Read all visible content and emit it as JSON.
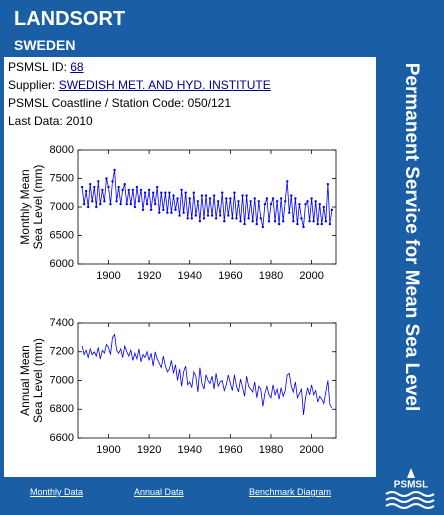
{
  "header": {
    "title": "LANDSORT",
    "subtitle": "SWEDEN"
  },
  "side_banner": "Permanent Service for Mean Sea Level",
  "info": [
    {
      "label": "PSMSL ID:",
      "link": "68"
    },
    {
      "label": "Supplier:",
      "link": "SWEDISH MET. AND HYD. INSTITUTE"
    },
    {
      "text": "PSMSL Coastline / Station Code: 050/121"
    },
    {
      "text": "Last Data: 2010"
    }
  ],
  "chart_data": [
    {
      "type": "line",
      "markers": true,
      "color": "#0000ff",
      "ylabel": [
        "Monthly Mean",
        "Sea Level (mm)"
      ],
      "xlim": [
        1885,
        2012
      ],
      "xticks": [
        1900,
        1920,
        1940,
        1960,
        1980,
        2000
      ],
      "ylim": [
        6000,
        8000
      ],
      "yticks": [
        6000,
        6500,
        7000,
        7500,
        8000
      ],
      "x": [
        1887,
        1888,
        1889,
        1890,
        1891,
        1892,
        1893,
        1894,
        1895,
        1896,
        1897,
        1898,
        1899,
        1900,
        1901,
        1902,
        1903,
        1904,
        1905,
        1906,
        1907,
        1908,
        1909,
        1910,
        1911,
        1912,
        1913,
        1914,
        1915,
        1916,
        1917,
        1918,
        1919,
        1920,
        1921,
        1922,
        1923,
        1924,
        1925,
        1926,
        1927,
        1928,
        1929,
        1930,
        1931,
        1932,
        1933,
        1934,
        1935,
        1936,
        1937,
        1938,
        1939,
        1940,
        1941,
        1942,
        1943,
        1944,
        1945,
        1946,
        1947,
        1948,
        1949,
        1950,
        1951,
        1952,
        1953,
        1954,
        1955,
        1956,
        1957,
        1958,
        1959,
        1960,
        1961,
        1962,
        1963,
        1964,
        1965,
        1966,
        1967,
        1968,
        1969,
        1970,
        1971,
        1972,
        1973,
        1974,
        1975,
        1976,
        1977,
        1978,
        1979,
        1980,
        1981,
        1982,
        1983,
        1984,
        1985,
        1986,
        1987,
        1988,
        1989,
        1990,
        1991,
        1992,
        1993,
        1994,
        1995,
        1996,
        1997,
        1998,
        1999,
        2000,
        2001,
        2002,
        2003,
        2004,
        2005,
        2006,
        2007,
        2008,
        2009,
        2010
      ],
      "values": [
        7350,
        7050,
        7280,
        7000,
        7400,
        7100,
        7350,
        7000,
        7450,
        7050,
        7300,
        7100,
        7500,
        7350,
        7050,
        7450,
        7650,
        7100,
        7350,
        7050,
        7300,
        7400,
        7050,
        7300,
        7050,
        7300,
        7000,
        7350,
        7100,
        7300,
        6950,
        7250,
        7050,
        7300,
        6950,
        7250,
        7050,
        7350,
        6900,
        7250,
        6950,
        7250,
        6900,
        7250,
        6900,
        7200,
        6950,
        7150,
        6850,
        7300,
        6900,
        7250,
        6800,
        7150,
        6800,
        7250,
        6850,
        7100,
        6750,
        7200,
        6800,
        7200,
        6850,
        7150,
        6850,
        7200,
        6800,
        7100,
        6850,
        7250,
        6750,
        7150,
        6850,
        7150,
        6800,
        7250,
        6800,
        7100,
        6750,
        7200,
        6700,
        7200,
        6800,
        7100,
        6750,
        7150,
        6700,
        7100,
        6800,
        6650,
        7050,
        7150,
        6750,
        7050,
        7150,
        6750,
        7100,
        6700,
        7150,
        6750,
        7100,
        7450,
        6900,
        7200,
        6750,
        7150,
        6700,
        7050,
        6800,
        6650,
        7050,
        7100,
        6750,
        7150,
        6750,
        7100,
        6700,
        7050,
        6700,
        7000,
        6750,
        7400,
        6700,
        6950
      ]
    },
    {
      "type": "line",
      "markers": false,
      "color": "#0000ff",
      "ylabel": [
        "Annual Mean",
        "Sea Level (mm)"
      ],
      "xlim": [
        1885,
        2012
      ],
      "xticks": [
        1900,
        1920,
        1940,
        1960,
        1980,
        2000
      ],
      "ylim": [
        6600,
        7400
      ],
      "yticks": [
        6600,
        6800,
        7000,
        7200,
        7400
      ],
      "x": [
        1887,
        1888,
        1889,
        1890,
        1891,
        1892,
        1893,
        1894,
        1895,
        1896,
        1897,
        1898,
        1899,
        1900,
        1901,
        1902,
        1903,
        1904,
        1905,
        1906,
        1907,
        1908,
        1909,
        1910,
        1911,
        1912,
        1913,
        1914,
        1915,
        1916,
        1917,
        1918,
        1919,
        1920,
        1921,
        1922,
        1923,
        1924,
        1925,
        1926,
        1927,
        1928,
        1929,
        1930,
        1931,
        1932,
        1933,
        1934,
        1935,
        1936,
        1937,
        1938,
        1939,
        1940,
        1941,
        1942,
        1943,
        1944,
        1945,
        1946,
        1947,
        1948,
        1949,
        1950,
        1951,
        1952,
        1953,
        1954,
        1955,
        1956,
        1957,
        1958,
        1959,
        1960,
        1961,
        1962,
        1963,
        1964,
        1965,
        1966,
        1967,
        1968,
        1969,
        1970,
        1971,
        1972,
        1973,
        1974,
        1975,
        1976,
        1977,
        1978,
        1979,
        1980,
        1981,
        1982,
        1983,
        1984,
        1985,
        1986,
        1987,
        1988,
        1989,
        1990,
        1991,
        1992,
        1993,
        1994,
        1995,
        1996,
        1997,
        1998,
        1999,
        2000,
        2001,
        2002,
        2003,
        2004,
        2005,
        2006,
        2007,
        2008,
        2009,
        2010
      ],
      "values": [
        7240,
        7180,
        7210,
        7160,
        7220,
        7180,
        7200,
        7170,
        7230,
        7150,
        7210,
        7190,
        7250,
        7230,
        7180,
        7300,
        7320,
        7210,
        7190,
        7220,
        7160,
        7240,
        7200,
        7170,
        7210,
        7140,
        7190,
        7150,
        7220,
        7130,
        7180,
        7160,
        7200,
        7140,
        7190,
        7100,
        7200,
        7150,
        7120,
        7090,
        7170,
        7100,
        7060,
        7080,
        7140,
        7050,
        7110,
        7000,
        7080,
        6960,
        7060,
        7100,
        6970,
        6990,
        6950,
        7060,
        7030,
        6920,
        7090,
        6980,
        6940,
        7040,
        7000,
        6980,
        7030,
        6940,
        7050,
        6960,
        6990,
        7000,
        6930,
        6970,
        7040,
        6980,
        6930,
        7040,
        6960,
        6920,
        7010,
        6950,
        6890,
        7030,
        6960,
        6940,
        6920,
        6990,
        6880,
        6960,
        6940,
        6820,
        6910,
        6960,
        6900,
        6880,
        6970,
        6900,
        6940,
        6870,
        6950,
        6890,
        6930,
        7040,
        7050,
        6960,
        6920,
        6990,
        6880,
        6910,
        6940,
        6760,
        6880,
        6950,
        6900,
        6970,
        6900,
        6930,
        6850,
        6890,
        6870,
        6840,
        6920,
        7000,
        6830,
        6810
      ]
    }
  ],
  "footer": {
    "links": [
      "Monthly Data",
      "Annual Data",
      "Benchmark Diagram"
    ],
    "logo": "PSMSL"
  }
}
